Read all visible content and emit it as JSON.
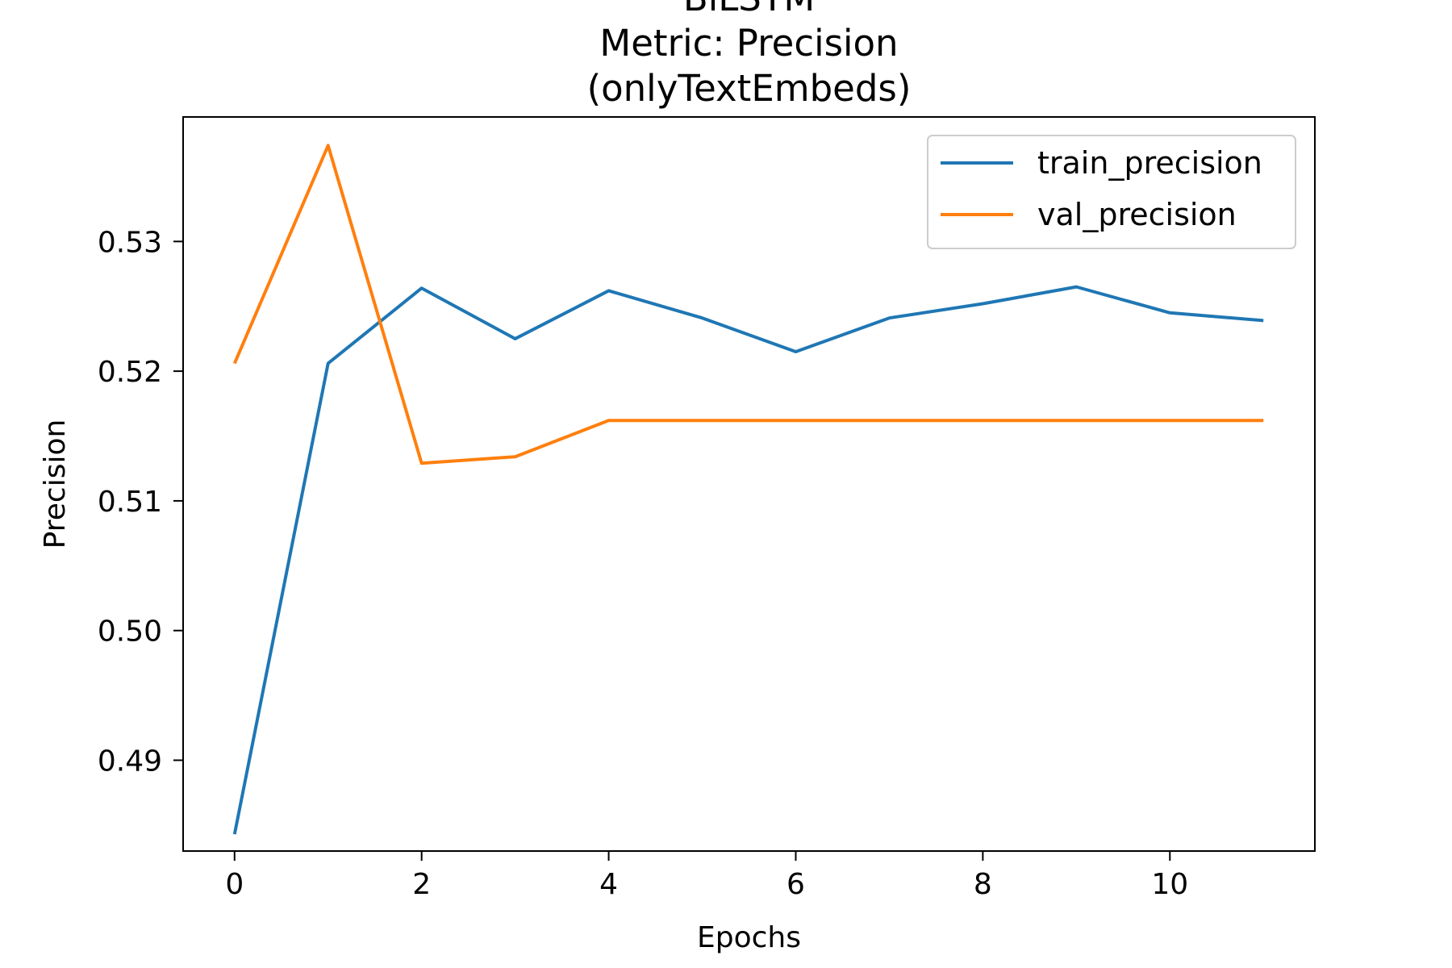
{
  "chart_data": {
    "type": "line",
    "title_lines": [
      "BiLSTM",
      "Metric: Precision",
      "(onlyTextEmbeds)"
    ],
    "xlabel": "Epochs",
    "ylabel": "Precision",
    "x": [
      0,
      1,
      2,
      3,
      4,
      5,
      6,
      7,
      8,
      9,
      10,
      11
    ],
    "xlim": [
      -0.55,
      11.55
    ],
    "ylim": [
      0.483,
      0.5396
    ],
    "xticks": [
      0,
      2,
      4,
      6,
      8,
      10
    ],
    "yticks": [
      0.49,
      0.5,
      0.51,
      0.52,
      0.53
    ],
    "ytick_labels": [
      "0.49",
      "0.50",
      "0.51",
      "0.52",
      "0.53"
    ],
    "grid": false,
    "legend_position": "top-right",
    "series": [
      {
        "name": "train_precision",
        "color": "#1f77b4",
        "values": [
          0.4843,
          0.5206,
          0.5264,
          0.5225,
          0.5262,
          0.5241,
          0.5215,
          0.5241,
          0.5252,
          0.5265,
          0.5245,
          0.5239
        ]
      },
      {
        "name": "val_precision",
        "color": "#ff7f0e",
        "values": [
          0.5206,
          0.5374,
          0.5129,
          0.5134,
          0.5162,
          0.5162,
          0.5162,
          0.5162,
          0.5162,
          0.5162,
          0.5162,
          0.5162
        ]
      }
    ]
  }
}
